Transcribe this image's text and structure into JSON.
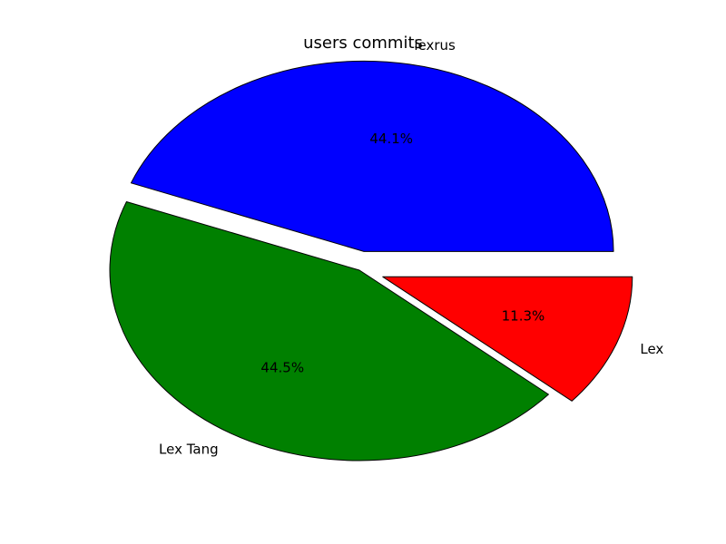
{
  "chart_data": {
    "type": "pie",
    "title": "users commits",
    "categories": [
      "lexrus",
      "Lex Tang",
      "Lex"
    ],
    "values": [
      44.1,
      44.5,
      11.3
    ],
    "percent_labels": [
      "44.1%",
      "44.5%",
      "11.3%"
    ],
    "colors": [
      "#0000ff",
      "#008000",
      "#ff0000"
    ],
    "exploded": [
      true,
      false,
      true
    ],
    "start_angle_deg": 0,
    "direction": "counterclockwise",
    "legend": "none"
  }
}
